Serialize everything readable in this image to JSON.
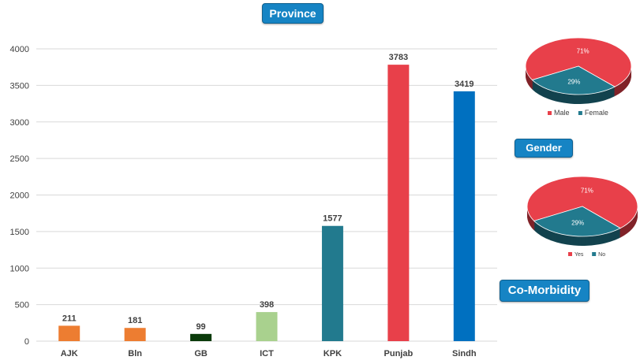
{
  "badges": {
    "province": "Province",
    "gender": "Gender",
    "comorbidity": "Co-Morbidity"
  },
  "colors": {
    "grid": "#d9d9d9",
    "axis_text": "#595959",
    "male": "#e8404a",
    "female": "#227a8e",
    "yes": "#e8404a",
    "no": "#227a8e"
  },
  "chart_data": [
    {
      "type": "bar",
      "title": "Province",
      "categories": [
        "AJK",
        "Bln",
        "GB",
        "ICT",
        "KPK",
        "Punjab",
        "Sindh"
      ],
      "values": [
        211,
        181,
        99,
        398,
        1577,
        3783,
        3419
      ],
      "data_labels": [
        "211",
        "181",
        "99",
        "398",
        "1577",
        "3783",
        "3419"
      ],
      "bar_colors": [
        "#ed7d31",
        "#ed7d31",
        "#0b3b0b",
        "#a9d18e",
        "#227a8e",
        "#e8404a",
        "#0070c0"
      ],
      "ylim": [
        0,
        4000
      ],
      "yticks": [
        0,
        500,
        1000,
        1500,
        2000,
        2500,
        3000,
        3500,
        4000
      ],
      "ytick_labels": [
        "0",
        "500",
        "1000",
        "1500",
        "2000",
        "2500",
        "3000",
        "3500",
        "4000"
      ],
      "grid": true,
      "legend": "none"
    },
    {
      "type": "pie",
      "title": "Gender",
      "labels": [
        "Male",
        "Female"
      ],
      "values": [
        71,
        29
      ],
      "data_labels": [
        "71%",
        "29%"
      ],
      "colors": [
        "#e8404a",
        "#227a8e"
      ],
      "legend": "bottom"
    },
    {
      "type": "pie",
      "title": "Co-Morbidity",
      "labels": [
        "Yes",
        "No"
      ],
      "values": [
        71,
        29
      ],
      "data_labels": [
        "71%",
        "29%"
      ],
      "colors": [
        "#e8404a",
        "#227a8e"
      ],
      "legend": "bottom"
    }
  ]
}
